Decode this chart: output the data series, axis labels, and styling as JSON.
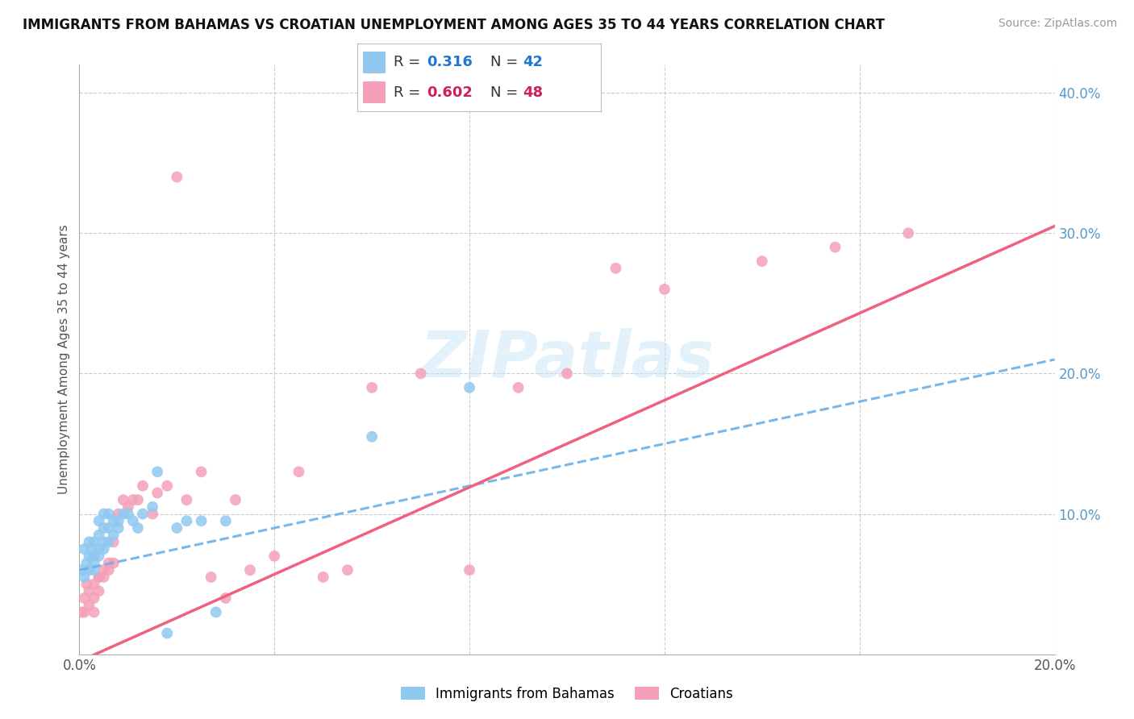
{
  "title": "IMMIGRANTS FROM BAHAMAS VS CROATIAN UNEMPLOYMENT AMONG AGES 35 TO 44 YEARS CORRELATION CHART",
  "source": "Source: ZipAtlas.com",
  "ylabel": "Unemployment Among Ages 35 to 44 years",
  "xlim": [
    0.0,
    0.2
  ],
  "ylim": [
    0.0,
    0.42
  ],
  "x_tick_positions": [
    0.0,
    0.04,
    0.08,
    0.12,
    0.16,
    0.2
  ],
  "x_tick_labels": [
    "0.0%",
    "",
    "",
    "",
    "",
    "20.0%"
  ],
  "y_tick_positions": [
    0.0,
    0.1,
    0.2,
    0.3,
    0.4
  ],
  "y_tick_labels_right": [
    "",
    "10.0%",
    "20.0%",
    "30.0%",
    "40.0%"
  ],
  "bahamas_R": 0.316,
  "bahamas_N": 42,
  "croatian_R": 0.602,
  "croatian_N": 48,
  "watermark": "ZIPatlas",
  "bahamas_color": "#90c8f0",
  "croatian_color": "#f4a0b8",
  "bahamas_line_color": "#6ab0e8",
  "croatian_line_color": "#f06080",
  "legend_R_color_bahamas": "#2277cc",
  "legend_N_color_bahamas": "#2277cc",
  "legend_R_color_croatian": "#cc2255",
  "legend_N_color_croatian": "#cc2255",
  "bahamas_x": [
    0.0005,
    0.001,
    0.001,
    0.0015,
    0.002,
    0.002,
    0.002,
    0.0025,
    0.003,
    0.003,
    0.003,
    0.003,
    0.004,
    0.004,
    0.004,
    0.004,
    0.005,
    0.005,
    0.005,
    0.005,
    0.006,
    0.006,
    0.006,
    0.007,
    0.007,
    0.008,
    0.008,
    0.009,
    0.01,
    0.011,
    0.012,
    0.013,
    0.015,
    0.016,
    0.018,
    0.02,
    0.022,
    0.025,
    0.028,
    0.03,
    0.06,
    0.08
  ],
  "bahamas_y": [
    0.06,
    0.055,
    0.075,
    0.065,
    0.06,
    0.07,
    0.08,
    0.075,
    0.06,
    0.065,
    0.07,
    0.08,
    0.07,
    0.075,
    0.085,
    0.095,
    0.075,
    0.08,
    0.09,
    0.1,
    0.08,
    0.09,
    0.1,
    0.085,
    0.095,
    0.09,
    0.095,
    0.1,
    0.1,
    0.095,
    0.09,
    0.1,
    0.105,
    0.13,
    0.015,
    0.09,
    0.095,
    0.095,
    0.03,
    0.095,
    0.155,
    0.19
  ],
  "croatian_x": [
    0.0005,
    0.001,
    0.001,
    0.0015,
    0.002,
    0.002,
    0.003,
    0.003,
    0.003,
    0.004,
    0.004,
    0.004,
    0.005,
    0.005,
    0.006,
    0.006,
    0.007,
    0.007,
    0.008,
    0.009,
    0.01,
    0.011,
    0.012,
    0.013,
    0.015,
    0.016,
    0.018,
    0.02,
    0.022,
    0.025,
    0.027,
    0.03,
    0.032,
    0.035,
    0.04,
    0.045,
    0.05,
    0.055,
    0.06,
    0.07,
    0.08,
    0.09,
    0.1,
    0.11,
    0.12,
    0.14,
    0.155,
    0.17
  ],
  "croatian_y": [
    0.03,
    0.04,
    0.03,
    0.05,
    0.045,
    0.035,
    0.05,
    0.04,
    0.03,
    0.055,
    0.045,
    0.055,
    0.06,
    0.055,
    0.065,
    0.06,
    0.08,
    0.065,
    0.1,
    0.11,
    0.105,
    0.11,
    0.11,
    0.12,
    0.1,
    0.115,
    0.12,
    0.34,
    0.11,
    0.13,
    0.055,
    0.04,
    0.11,
    0.06,
    0.07,
    0.13,
    0.055,
    0.06,
    0.19,
    0.2,
    0.06,
    0.19,
    0.2,
    0.275,
    0.26,
    0.28,
    0.29,
    0.3
  ]
}
